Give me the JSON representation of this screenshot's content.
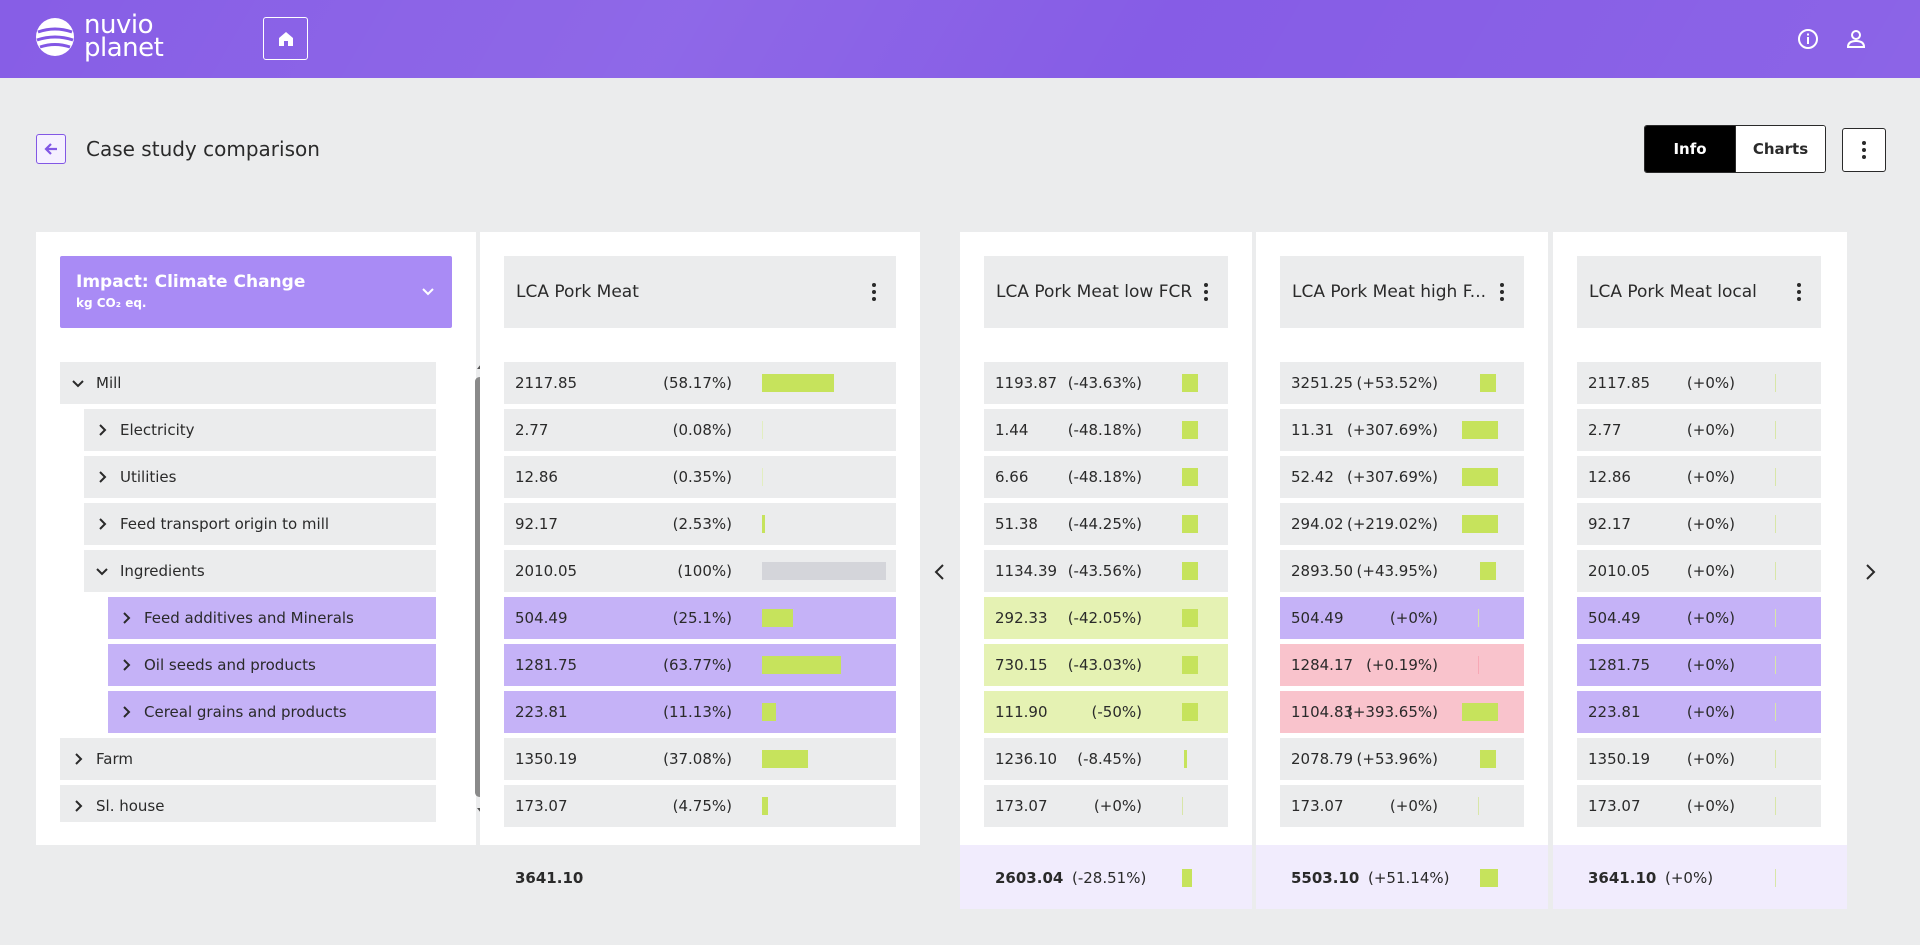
{
  "header": {
    "logo_line1": "nuvio",
    "logo_line2": "planet",
    "home_icon": "home-icon",
    "info_icon": "info-icon",
    "user_icon": "user-icon"
  },
  "page": {
    "title": "Case study comparison",
    "tabs": [
      {
        "label": "Info",
        "active": true
      },
      {
        "label": "Charts",
        "active": false
      }
    ]
  },
  "impact": {
    "title": "Impact: Climate Change",
    "unit": "kg CO₂ eq."
  },
  "tree": [
    {
      "label": "Mill",
      "level": 0,
      "expanded": true,
      "selected": false
    },
    {
      "label": "Electricity",
      "level": 1,
      "expanded": false,
      "selected": false
    },
    {
      "label": "Utilities",
      "level": 1,
      "expanded": false,
      "selected": false
    },
    {
      "label": "Feed transport origin to mill",
      "level": 1,
      "expanded": false,
      "selected": false
    },
    {
      "label": "Ingredients",
      "level": 1,
      "expanded": true,
      "selected": false
    },
    {
      "label": "Feed additives and Minerals",
      "level": 2,
      "expanded": false,
      "selected": true
    },
    {
      "label": "Oil seeds and products",
      "level": 2,
      "expanded": false,
      "selected": true
    },
    {
      "label": "Cereal grains and products",
      "level": 2,
      "expanded": false,
      "selected": true
    },
    {
      "label": "Farm",
      "level": 0,
      "expanded": false,
      "selected": false
    },
    {
      "label": "Sl. house",
      "level": 0,
      "expanded": false,
      "selected": false
    }
  ],
  "baseline": {
    "name": "LCA Pork Meat",
    "rows": [
      {
        "value": "2117.85",
        "pct": "(58.17%)",
        "share": 0.5817,
        "style": ""
      },
      {
        "value": "2.77",
        "pct": "(0.08%)",
        "share": 0.0008,
        "style": ""
      },
      {
        "value": "12.86",
        "pct": "(0.35%)",
        "share": 0.0035,
        "style": ""
      },
      {
        "value": "92.17",
        "pct": "(2.53%)",
        "share": 0.0253,
        "style": ""
      },
      {
        "value": "2010.05",
        "pct": "(100%)",
        "share": 1.0,
        "style": "",
        "gray": true
      },
      {
        "value": "504.49",
        "pct": "(25.1%)",
        "share": 0.251,
        "style": "sel"
      },
      {
        "value": "1281.75",
        "pct": "(63.77%)",
        "share": 0.6377,
        "style": "sel"
      },
      {
        "value": "223.81",
        "pct": "(11.13%)",
        "share": 0.1113,
        "style": "sel"
      },
      {
        "value": "1350.19",
        "pct": "(37.08%)",
        "share": 0.3708,
        "style": ""
      },
      {
        "value": "173.07",
        "pct": "(4.75%)",
        "share": 0.0475,
        "style": ""
      }
    ],
    "total": "3641.10"
  },
  "comparisons": [
    {
      "name": "LCA Pork Meat low FCR",
      "rows": [
        {
          "value": "1193.87",
          "pct": "(-43.63%)",
          "change": -0.4363,
          "style": ""
        },
        {
          "value": "1.44",
          "pct": "(-48.18%)",
          "change": -0.4818,
          "style": ""
        },
        {
          "value": "6.66",
          "pct": "(-48.18%)",
          "change": -0.4818,
          "style": ""
        },
        {
          "value": "51.38",
          "pct": "(-44.25%)",
          "change": -0.4425,
          "style": ""
        },
        {
          "value": "1134.39",
          "pct": "(-43.56%)",
          "change": -0.4356,
          "style": ""
        },
        {
          "value": "292.33",
          "pct": "(-42.05%)",
          "change": -0.4205,
          "style": "good"
        },
        {
          "value": "730.15",
          "pct": "(-43.03%)",
          "change": -0.4303,
          "style": "good"
        },
        {
          "value": "111.90",
          "pct": "(-50%)",
          "change": -0.5,
          "style": "good"
        },
        {
          "value": "1236.10",
          "pct": "(-8.45%)",
          "change": -0.0845,
          "style": ""
        },
        {
          "value": "173.07",
          "pct": "(+0%)",
          "change": 0,
          "style": ""
        }
      ],
      "total": "2603.04",
      "total_pct": "(-28.51%)",
      "total_change": -0.2851
    },
    {
      "name": "LCA Pork Meat high F...",
      "rows": [
        {
          "value": "3251.25",
          "pct": "(+53.52%)",
          "change": 0.5352,
          "style": ""
        },
        {
          "value": "11.31",
          "pct": "(+307.69%)",
          "change": 3.0769,
          "style": ""
        },
        {
          "value": "52.42",
          "pct": "(+307.69%)",
          "change": 3.0769,
          "style": ""
        },
        {
          "value": "294.02",
          "pct": "(+219.02%)",
          "change": 2.1902,
          "style": ""
        },
        {
          "value": "2893.50",
          "pct": "(+43.95%)",
          "change": 0.4395,
          "style": ""
        },
        {
          "value": "504.49",
          "pct": "(+0%)",
          "change": 0,
          "style": "sel"
        },
        {
          "value": "1284.17",
          "pct": "(+0.19%)",
          "change": 0.0019,
          "style": "bad"
        },
        {
          "value": "1104.83",
          "pct": "(+393.65%)",
          "change": 3.9365,
          "style": "bad"
        },
        {
          "value": "2078.79",
          "pct": "(+53.96%)",
          "change": 0.5396,
          "style": ""
        },
        {
          "value": "173.07",
          "pct": "(+0%)",
          "change": 0,
          "style": ""
        }
      ],
      "total": "5503.10",
      "total_pct": "(+51.14%)",
      "total_change": 0.5114
    },
    {
      "name": "LCA Pork Meat local",
      "rows": [
        {
          "value": "2117.85",
          "pct": "(+0%)",
          "change": 0,
          "style": ""
        },
        {
          "value": "2.77",
          "pct": "(+0%)",
          "change": 0,
          "style": ""
        },
        {
          "value": "12.86",
          "pct": "(+0%)",
          "change": 0,
          "style": ""
        },
        {
          "value": "92.17",
          "pct": "(+0%)",
          "change": 0,
          "style": ""
        },
        {
          "value": "2010.05",
          "pct": "(+0%)",
          "change": 0,
          "style": ""
        },
        {
          "value": "504.49",
          "pct": "(+0%)",
          "change": 0,
          "style": "sel"
        },
        {
          "value": "1281.75",
          "pct": "(+0%)",
          "change": 0,
          "style": "sel"
        },
        {
          "value": "223.81",
          "pct": "(+0%)",
          "change": 0,
          "style": "sel"
        },
        {
          "value": "1350.19",
          "pct": "(+0%)",
          "change": 0,
          "style": ""
        },
        {
          "value": "173.07",
          "pct": "(+0%)",
          "change": 0,
          "style": ""
        }
      ],
      "total": "3641.10",
      "total_pct": "(+0%)",
      "total_change": 0
    }
  ],
  "colors": {
    "brand": "#8257e5",
    "selected_row": "#c5b2f7",
    "improved_row": "#e5f2b3",
    "worse_row": "#f9c3cc",
    "bar": "#c6e35c"
  }
}
